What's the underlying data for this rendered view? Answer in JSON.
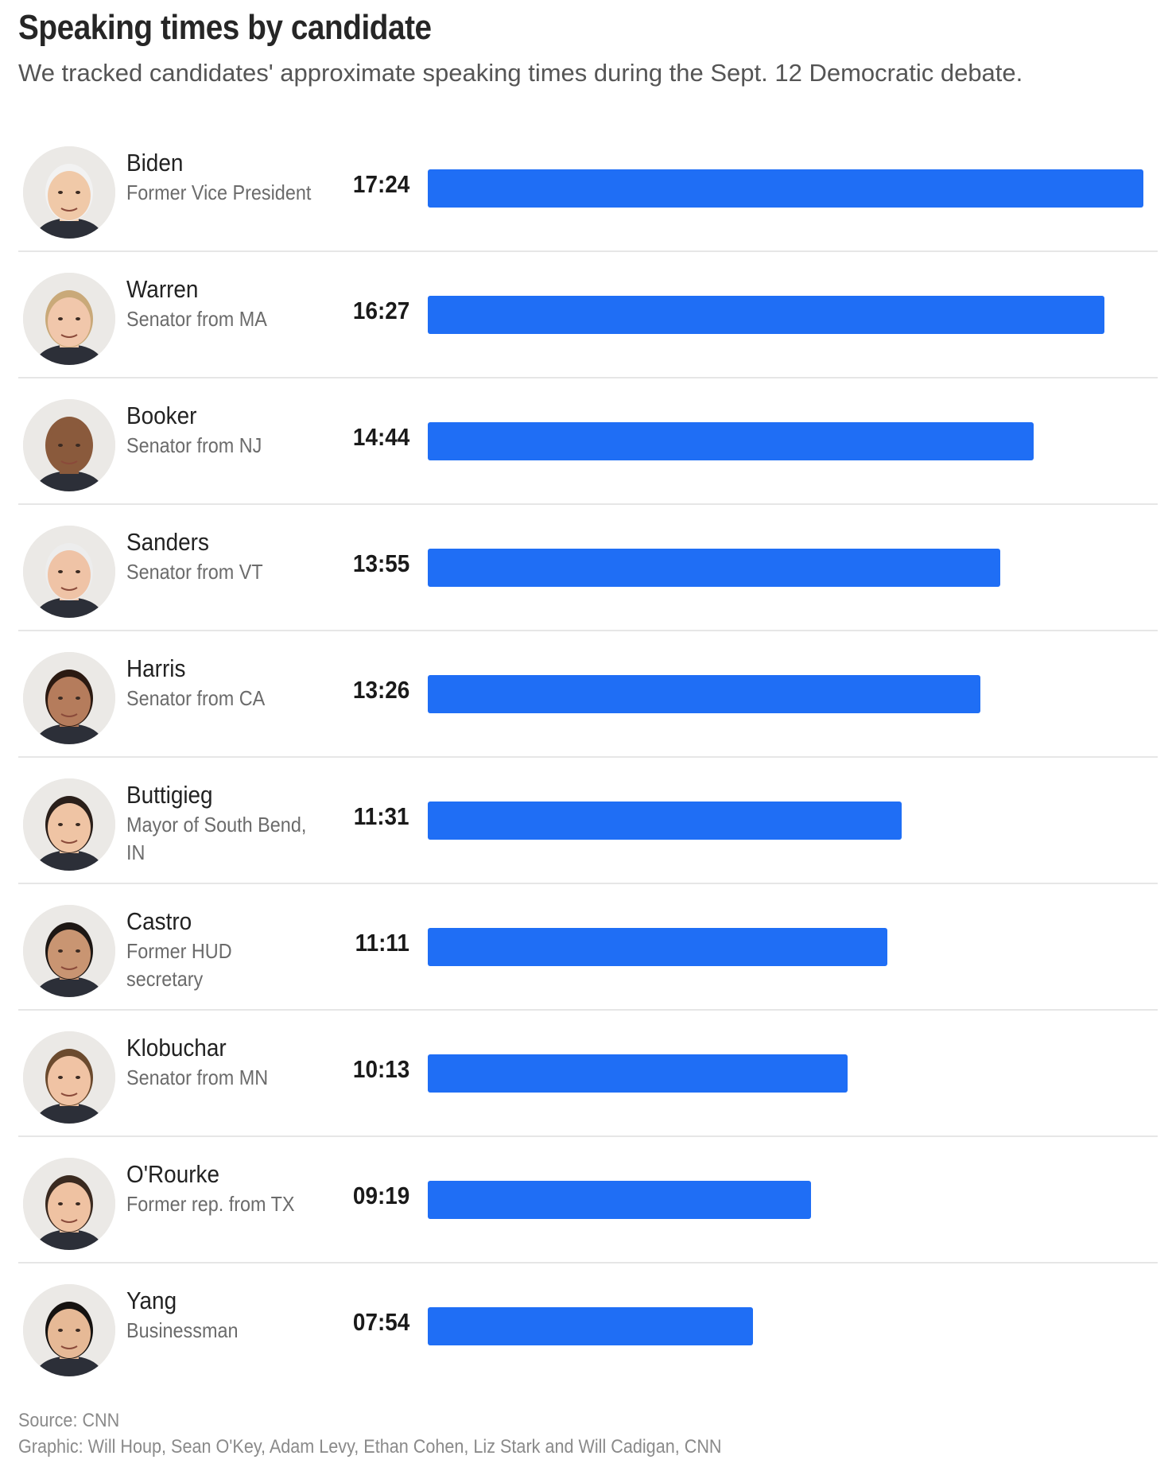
{
  "header": {
    "title": "Speaking times by candidate",
    "subtitle": "We tracked candidates' approximate speaking times during the Sept. 12 Democratic debate."
  },
  "chart_data": {
    "type": "bar",
    "orientation": "horizontal",
    "title": "Speaking times by candidate",
    "subtitle": "We tracked candidates' approximate speaking times during the Sept. 12 Democratic debate.",
    "bar_color": "#1f6ef5",
    "max_seconds": 1044,
    "categories": [
      "Biden",
      "Warren",
      "Booker",
      "Sanders",
      "Harris",
      "Buttigieg",
      "Castro",
      "Klobuchar",
      "O'Rourke",
      "Yang"
    ],
    "rows": [
      {
        "name": "Biden",
        "role": "Former Vice President",
        "time_label": "17:24",
        "seconds": 1044,
        "avatar_icon": "biden-portrait-icon",
        "skin": "#f0c9a8",
        "hair": "#f2f2f2"
      },
      {
        "name": "Warren",
        "role": "Senator from MA",
        "time_label": "16:27",
        "seconds": 987,
        "avatar_icon": "warren-portrait-icon",
        "skin": "#f1c7ab",
        "hair": "#c9a979"
      },
      {
        "name": "Booker",
        "role": "Senator from NJ",
        "time_label": "14:44",
        "seconds": 884,
        "avatar_icon": "booker-portrait-icon",
        "skin": "#8a5a3c",
        "hair": "#8a5a3c"
      },
      {
        "name": "Sanders",
        "role": "Senator from VT",
        "time_label": "13:55",
        "seconds": 835,
        "avatar_icon": "sanders-portrait-icon",
        "skin": "#efc3a6",
        "hair": "#ededed"
      },
      {
        "name": "Harris",
        "role": "Senator from CA",
        "time_label": "13:26",
        "seconds": 806,
        "avatar_icon": "harris-portrait-icon",
        "skin": "#b57c5c",
        "hair": "#2b1a12"
      },
      {
        "name": "Buttigieg",
        "role": "Mayor of South Bend, IN",
        "time_label": "11:31",
        "seconds": 691,
        "avatar_icon": "buttigieg-portrait-icon",
        "skin": "#efc4a4",
        "hair": "#2a1f1a"
      },
      {
        "name": "Castro",
        "role": "Former HUD secretary",
        "time_label": "11:11",
        "seconds": 671,
        "avatar_icon": "castro-portrait-icon",
        "skin": "#c99572",
        "hair": "#1d1714"
      },
      {
        "name": "Klobuchar",
        "role": "Senator from MN",
        "time_label": "10:13",
        "seconds": 613,
        "avatar_icon": "klobuchar-portrait-icon",
        "skin": "#f0c3a4",
        "hair": "#6b4a2e"
      },
      {
        "name": "O'Rourke",
        "role": "Former rep. from TX",
        "time_label": "09:19",
        "seconds": 559,
        "avatar_icon": "orourke-portrait-icon",
        "skin": "#efc2a2",
        "hair": "#3a2a20"
      },
      {
        "name": "Yang",
        "role": "Businessman",
        "time_label": "07:54",
        "seconds": 474,
        "avatar_icon": "yang-portrait-icon",
        "skin": "#e6b996",
        "hair": "#151210"
      }
    ]
  },
  "footer": {
    "source": "Source: CNN",
    "credit": "Graphic: Will Houp, Sean O'Key, Adam Levy, Ethan Cohen, Liz Stark and Will Cadigan, CNN"
  }
}
